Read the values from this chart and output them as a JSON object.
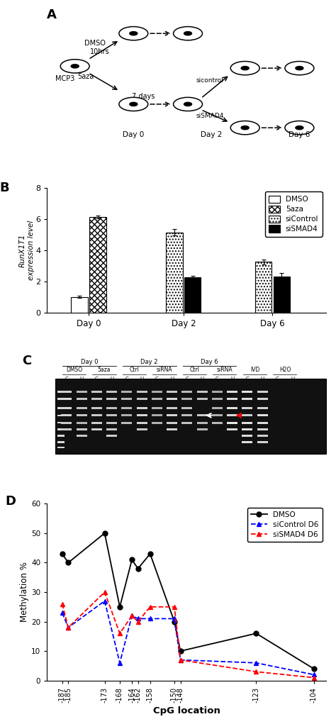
{
  "panel_A": {
    "label": "A"
  },
  "panel_B": {
    "label": "B",
    "ylabel": "RunX1T1\nexpression level",
    "ylim": [
      0,
      8
    ],
    "yticks": [
      0,
      2,
      4,
      6,
      8
    ],
    "groups": [
      "Day 0",
      "Day 2",
      "Day 6"
    ],
    "bar_data": {
      "Day 0": [
        {
          "name": "DMSO",
          "value": 1.0,
          "err": 0.08,
          "hatch": "",
          "fc": "white",
          "ec": "black"
        },
        {
          "name": "5aza",
          "value": 6.15,
          "err": 0.1,
          "hatch": "xxxx",
          "fc": "white",
          "ec": "black"
        }
      ],
      "Day 2": [
        {
          "name": "siControl",
          "value": 5.15,
          "err": 0.2,
          "hatch": "....",
          "fc": "white",
          "ec": "black"
        },
        {
          "name": "siSMAD4",
          "value": 2.25,
          "err": 0.1,
          "hatch": "",
          "fc": "black",
          "ec": "black"
        }
      ],
      "Day 6": [
        {
          "name": "siControl",
          "value": 3.25,
          "err": 0.15,
          "hatch": "....",
          "fc": "white",
          "ec": "black"
        },
        {
          "name": "siSMAD4",
          "value": 2.3,
          "err": 0.25,
          "hatch": "",
          "fc": "black",
          "ec": "black"
        }
      ]
    }
  },
  "panel_D": {
    "label": "D",
    "xlabel": "CpG location",
    "ylabel": "Methylation %",
    "ylim": [
      0,
      60
    ],
    "yticks": [
      0,
      10,
      20,
      30,
      40,
      50,
      60
    ],
    "cpg_locations": [
      -187,
      -185,
      -173,
      -168,
      -164,
      -162,
      -158,
      -150,
      -148,
      -123,
      -104
    ],
    "series": [
      {
        "name": "DMSO",
        "values": [
          43,
          40,
          50,
          25,
          41,
          38,
          43,
          20,
          10,
          16,
          4
        ],
        "color": "black",
        "marker": "o",
        "linestyle": "-"
      },
      {
        "name": "siControl D6",
        "values": [
          23,
          18,
          27,
          6,
          22,
          21,
          21,
          21,
          7,
          6,
          2
        ],
        "color": "blue",
        "marker": "^",
        "linestyle": "--"
      },
      {
        "name": "siSMAD4 D6",
        "values": [
          26,
          18,
          30,
          16,
          22,
          20,
          25,
          25,
          7,
          3,
          1
        ],
        "color": "red",
        "marker": "^",
        "linestyle": "--"
      }
    ]
  }
}
